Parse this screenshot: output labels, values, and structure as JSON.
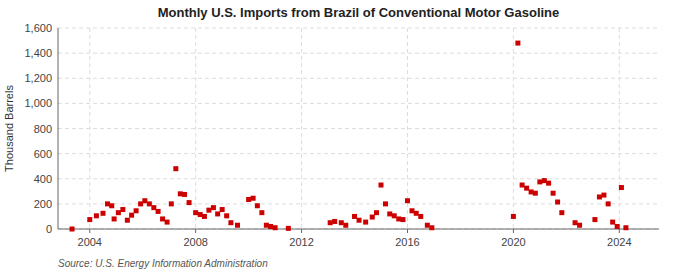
{
  "chart_data": {
    "type": "scatter",
    "title": "Monthly U.S. Imports from Brazil of Conventional Motor Gasoline",
    "ylabel": "Thousand Barrels",
    "source": "Source: U.S. Energy Information Administration",
    "color": "#cc0000",
    "marker": "square",
    "grid": true,
    "xlim": [
      2002.8,
      2025.5
    ],
    "xticks": [
      2004,
      2008,
      2012,
      2016,
      2020,
      2024
    ],
    "ylim": [
      0,
      1600
    ],
    "yticks": [
      0,
      200,
      400,
      600,
      800,
      {
        "value": 1000,
        "label": "1,000"
      },
      {
        "value": 1200,
        "label": "1,200"
      },
      {
        "value": 1400,
        "label": "1,400"
      },
      {
        "value": 1600,
        "label": "1,600"
      }
    ],
    "x": [
      2003.33,
      2004.0,
      2004.25,
      2004.5,
      2004.67,
      2004.83,
      2004.92,
      2005.08,
      2005.25,
      2005.42,
      2005.58,
      2005.75,
      2005.92,
      2006.08,
      2006.25,
      2006.42,
      2006.58,
      2006.75,
      2006.92,
      2007.08,
      2007.25,
      2007.42,
      2007.58,
      2007.75,
      2008.0,
      2008.17,
      2008.33,
      2008.5,
      2008.67,
      2008.83,
      2009.0,
      2009.17,
      2009.33,
      2009.58,
      2010.0,
      2010.17,
      2010.33,
      2010.5,
      2010.67,
      2010.83,
      2011.0,
      2011.5,
      2013.08,
      2013.25,
      2013.5,
      2013.67,
      2014.0,
      2014.17,
      2014.42,
      2014.67,
      2014.83,
      2015.0,
      2015.17,
      2015.33,
      2015.5,
      2015.67,
      2015.83,
      2016.0,
      2016.17,
      2016.33,
      2016.5,
      2016.75,
      2016.92,
      2020.0,
      2020.17,
      2020.33,
      2020.5,
      2020.67,
      2020.83,
      2021.0,
      2021.17,
      2021.33,
      2021.5,
      2021.67,
      2021.83,
      2022.33,
      2022.5,
      2023.08,
      2023.25,
      2023.42,
      2023.58,
      2023.75,
      2023.92,
      2024.08,
      2024.25
    ],
    "values": [
      0,
      75,
      105,
      125,
      200,
      185,
      80,
      130,
      155,
      70,
      110,
      145,
      200,
      225,
      200,
      170,
      140,
      80,
      55,
      200,
      480,
      280,
      275,
      210,
      130,
      115,
      100,
      150,
      170,
      120,
      155,
      105,
      50,
      30,
      235,
      245,
      185,
      130,
      30,
      20,
      10,
      5,
      50,
      60,
      50,
      30,
      100,
      70,
      55,
      95,
      130,
      350,
      200,
      120,
      105,
      80,
      75,
      225,
      145,
      125,
      100,
      30,
      10,
      100,
      1480,
      350,
      325,
      295,
      285,
      375,
      385,
      365,
      285,
      215,
      130,
      50,
      30,
      75,
      255,
      270,
      200,
      55,
      20,
      330,
      10
    ]
  }
}
